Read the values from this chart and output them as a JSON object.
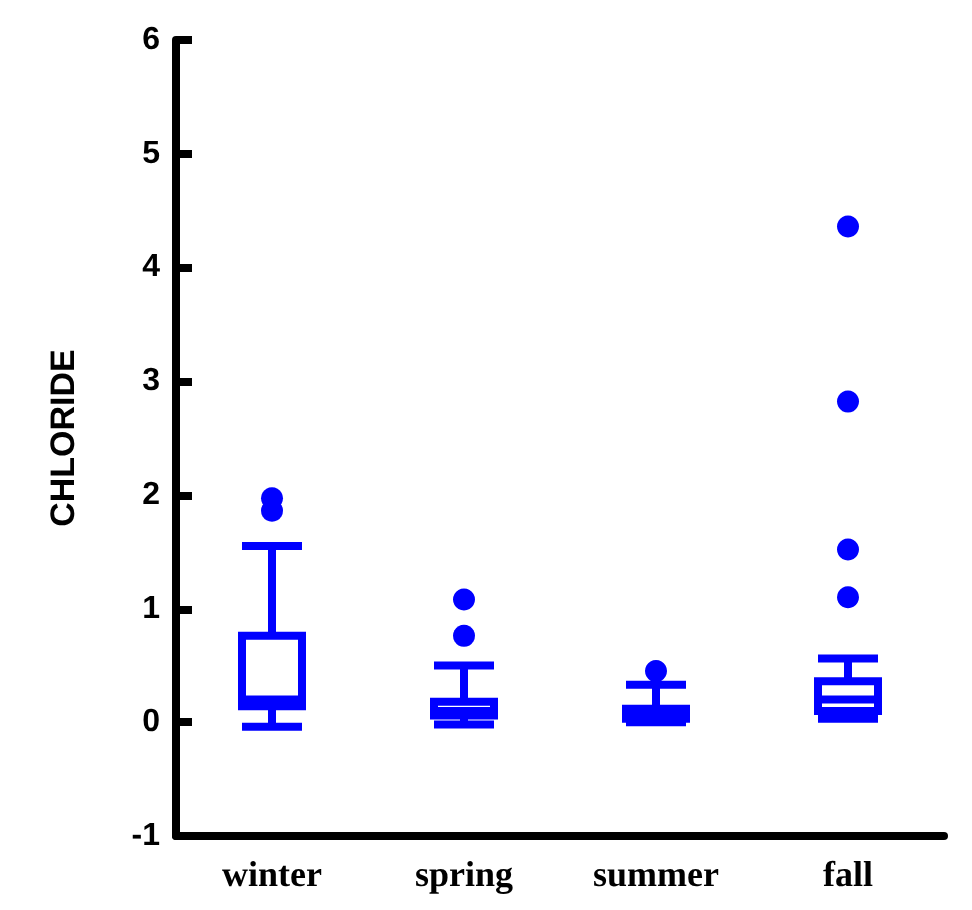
{
  "chart_data": {
    "type": "box",
    "ylabel": "CHLORIDE",
    "categories": [
      "winter",
      "spring",
      "summer",
      "fall"
    ],
    "series": [
      {
        "color": "#0000ff",
        "boxes": [
          {
            "low": -0.04,
            "q1": 0.14,
            "median": 0.2,
            "q3": 0.76,
            "high": 1.55,
            "outliers": [
              1.86,
              1.97
            ]
          },
          {
            "low": -0.02,
            "q1": 0.06,
            "median": 0.1,
            "q3": 0.18,
            "high": 0.5,
            "outliers": [
              0.76,
              1.08
            ]
          },
          {
            "low": 0,
            "q1": 0.03,
            "median": 0.07,
            "q3": 0.12,
            "high": 0.33,
            "outliers": [
              0.45
            ]
          },
          {
            "low": 0.03,
            "q1": 0.1,
            "median": 0.2,
            "q3": 0.36,
            "high": 0.56,
            "outliers": [
              1.1,
              1.52,
              2.82,
              4.36
            ]
          }
        ]
      }
    ],
    "ylim": [
      -1,
      6
    ],
    "yticks": [
      -1,
      0,
      1,
      2,
      3,
      4,
      5,
      6
    ],
    "grid": false,
    "marker": "circle"
  }
}
